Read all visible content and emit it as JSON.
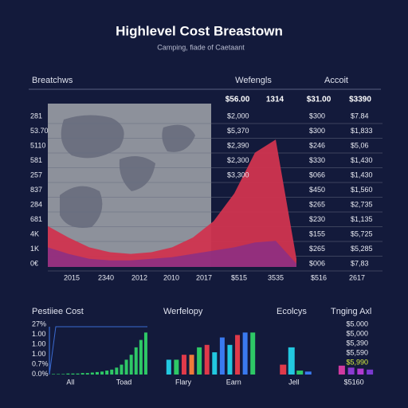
{
  "header": {
    "title": "Highlevel Cost Breastown",
    "subtitle": "Camping, fiade of Caetaant"
  },
  "main": {
    "headers": [
      "Breatchws",
      "Wefengls",
      "Accoit"
    ],
    "col_heads": [
      "$56.00",
      "1314",
      "$31.00",
      "$3390"
    ],
    "y_labels": [
      "281",
      "53.70",
      "5110",
      "581",
      "257",
      "837",
      "284",
      "681",
      "4K",
      "1K",
      "0€"
    ],
    "x_labels": [
      "2015",
      "2340",
      "2012",
      "2010",
      "2017",
      "$515",
      "3535",
      "$516",
      "2617"
    ],
    "col1": [
      "$2,000",
      "$5,370",
      "$2,390",
      "$2,300",
      "$3,300"
    ],
    "col2": [
      "$300",
      "$300",
      "$246",
      "$330",
      "$066",
      "$450",
      "$265",
      "$230",
      "$155",
      "$265",
      "$006"
    ],
    "col3": [
      "$7.84",
      "$1,833",
      "$5,06",
      "$1,430",
      "$1,430",
      "$1,560",
      "$2,735",
      "$1,135",
      "$5,725",
      "$5,285",
      "$7,83"
    ]
  },
  "chart_data": [
    {
      "type": "area",
      "ylim": [
        0,
        100
      ],
      "series": [
        {
          "color": "#d0344f",
          "values": [
            25,
            18,
            12,
            9,
            8,
            9,
            12,
            18,
            28,
            45,
            70,
            78,
            5
          ]
        },
        {
          "color": "#8a2f86",
          "values": [
            12,
            8,
            5,
            4,
            4,
            5,
            6,
            8,
            10,
            12,
            15,
            16,
            2
          ]
        }
      ]
    },
    {
      "type": "bar",
      "title": "Pestiiee Cost",
      "ylim": [
        0,
        100
      ],
      "y_labels": [
        "27%",
        "1.00",
        "1.00",
        "1.00",
        "0.7%",
        "0.0%"
      ],
      "x_labels": [
        "All",
        "Toad"
      ],
      "colors": [
        "#2ec866"
      ],
      "values": [
        1,
        1,
        1,
        2,
        2,
        2,
        3,
        3,
        4,
        5,
        6,
        8,
        10,
        14,
        20,
        30,
        40,
        55,
        70,
        85
      ]
    },
    {
      "type": "bar",
      "title": "Werfelopy",
      "ylim": [
        0,
        100
      ],
      "x_labels": [
        "Flary",
        "Earn"
      ],
      "colors": [
        "#22c8e0",
        "#2ec866",
        "#e03a4a",
        "#f07a3a",
        "#2ec866",
        "#e03a4a",
        "#22c8e0",
        "#3a7af0",
        "#22c8e0",
        "#e03a4a",
        "#3a7af0",
        "#2ec866"
      ],
      "values": [
        30,
        30,
        40,
        40,
        55,
        60,
        45,
        75,
        60,
        80,
        85,
        85
      ]
    },
    {
      "type": "bar",
      "title": "Ecolcys",
      "ylim": [
        0,
        100
      ],
      "x_labels": [
        "Jell"
      ],
      "colors": [
        "#e03a4a",
        "#22c8e0",
        "#2ec866",
        "#3a7af0"
      ],
      "values": [
        20,
        55,
        8,
        6
      ]
    },
    {
      "type": "bar",
      "title": "Tnging Axl",
      "ylim": [
        0,
        100
      ],
      "y_labels": [
        "$5.000",
        "$5,000",
        "$5,390",
        "$5,590",
        "$5,990"
      ],
      "x_labels": [
        "$5160"
      ],
      "colors": [
        "#d03aa0",
        "#8a3ad0",
        "#b03ad0",
        "#7a3ad0"
      ],
      "values": [
        18,
        14,
        12,
        10
      ]
    }
  ]
}
